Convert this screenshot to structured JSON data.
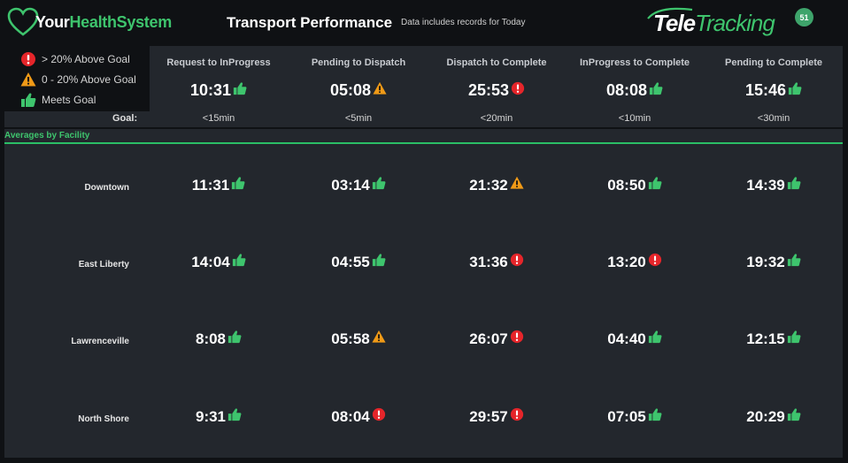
{
  "brand": {
    "part1": "Your",
    "part2": "HealthSystem"
  },
  "title": "Transport Performance",
  "subtitle": "Data includes records for Today",
  "vendor": {
    "part1": "Tele",
    "part2": "Tracking",
    "badge": "51"
  },
  "colors": {
    "green": "#3ec46d",
    "red": "#e5252a",
    "orange": "#f09a17",
    "panel": "#23272d",
    "background": "#0f1114"
  },
  "legend": [
    {
      "icon": "alert-circle-icon",
      "label": "> 20% Above Goal"
    },
    {
      "icon": "warning-triangle-icon",
      "label": "0 - 20% Above Goal"
    },
    {
      "icon": "thumbs-up-icon",
      "label": "Meets Goal"
    }
  ],
  "goal_label": "Goal:",
  "metrics": [
    {
      "name": "Request to InProgress",
      "value": "10:31",
      "status": "meets",
      "goal": "<15min"
    },
    {
      "name": "Pending to Dispatch",
      "value": "05:08",
      "status": "warn",
      "goal": "<5min"
    },
    {
      "name": "Dispatch to Complete",
      "value": "25:53",
      "status": "alert",
      "goal": "<20min"
    },
    {
      "name": "InProgress to Complete",
      "value": "08:08",
      "status": "meets",
      "goal": "<10min"
    },
    {
      "name": "Pending to Complete",
      "value": "15:46",
      "status": "meets",
      "goal": "<30min"
    }
  ],
  "facility_header": "Averages by Facility",
  "facilities": [
    {
      "name": "Downtown",
      "values": [
        {
          "v": "11:31",
          "s": "meets"
        },
        {
          "v": "03:14",
          "s": "meets"
        },
        {
          "v": "21:32",
          "s": "warn"
        },
        {
          "v": "08:50",
          "s": "meets"
        },
        {
          "v": "14:39",
          "s": "meets"
        }
      ]
    },
    {
      "name": "East Liberty",
      "values": [
        {
          "v": "14:04",
          "s": "meets"
        },
        {
          "v": "04:55",
          "s": "meets"
        },
        {
          "v": "31:36",
          "s": "alert"
        },
        {
          "v": "13:20",
          "s": "alert"
        },
        {
          "v": "19:32",
          "s": "meets"
        }
      ]
    },
    {
      "name": "Lawrenceville",
      "values": [
        {
          "v": "8:08",
          "s": "meets"
        },
        {
          "v": "05:58",
          "s": "warn"
        },
        {
          "v": "26:07",
          "s": "alert"
        },
        {
          "v": "04:40",
          "s": "meets"
        },
        {
          "v": "12:15",
          "s": "meets"
        }
      ]
    },
    {
      "name": "North Shore",
      "values": [
        {
          "v": "9:31",
          "s": "meets"
        },
        {
          "v": "08:04",
          "s": "alert"
        },
        {
          "v": "29:57",
          "s": "alert"
        },
        {
          "v": "07:05",
          "s": "meets"
        },
        {
          "v": "20:29",
          "s": "meets"
        }
      ]
    }
  ]
}
